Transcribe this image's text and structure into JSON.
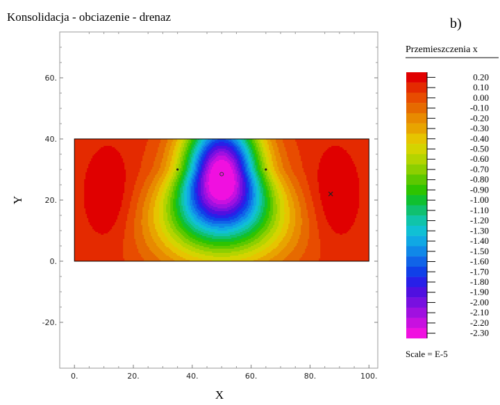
{
  "chart_data": {
    "type": "heatmap",
    "title": "Konsolidacja - obciazenie - drenaz",
    "panel_label": "b)",
    "xlabel": "X",
    "ylabel": "Y",
    "xlim": [
      -5,
      103
    ],
    "ylim": [
      -35,
      75
    ],
    "x_ticks": [
      0,
      20,
      40,
      60,
      80,
      100
    ],
    "x_tick_labels": [
      "0.",
      "20.",
      "40.",
      "60.",
      "80.",
      "100."
    ],
    "y_ticks": [
      -20,
      0,
      20,
      40,
      60
    ],
    "y_tick_labels": [
      "-20.",
      "0.",
      "20.",
      "40.",
      "60."
    ],
    "domain": {
      "x": [
        0,
        100
      ],
      "y": [
        0,
        40
      ]
    },
    "field_model": {
      "description_free": true,
      "background": 0.05,
      "features": [
        {
          "type": "trough",
          "x": 50,
          "y": 29,
          "depth": 2.3
        },
        {
          "type": "peak",
          "x": 12,
          "y": 21,
          "height": 0.18
        },
        {
          "type": "peak",
          "x": 88,
          "y": 21,
          "height": 0.18
        }
      ]
    },
    "markers": [
      {
        "x": 35,
        "y": 30,
        "symbol": "dot"
      },
      {
        "x": 65,
        "y": 30,
        "symbol": "dot"
      },
      {
        "x": 50,
        "y": 28.5,
        "symbol": "circle"
      },
      {
        "x": 87,
        "y": 22,
        "symbol": "cross"
      }
    ],
    "colorbar": {
      "title": "Przemieszczenia x",
      "scale_label": "Scale = E-5",
      "levels": [
        "0.20",
        "0.10",
        "0.00",
        "-0.10",
        "-0.20",
        "-0.30",
        "-0.40",
        "-0.50",
        "-0.60",
        "-0.70",
        "-0.80",
        "-0.90",
        "-1.00",
        "-1.10",
        "-1.20",
        "-1.30",
        "-1.40",
        "-1.50",
        "-1.60",
        "-1.70",
        "-1.80",
        "-1.90",
        "-2.00",
        "-2.10",
        "-2.20",
        "-2.30"
      ],
      "colors": [
        "#e00000",
        "#e42a00",
        "#e84c00",
        "#e66a00",
        "#e88a00",
        "#e8a400",
        "#e6c400",
        "#d4d400",
        "#b4d400",
        "#8ccf00",
        "#5cc800",
        "#2ec400",
        "#10c030",
        "#10c070",
        "#10c4aa",
        "#10c0d4",
        "#10a8e4",
        "#1088e8",
        "#1064e8",
        "#1040e8",
        "#2820e8",
        "#5010e0",
        "#7810e0",
        "#a010e0",
        "#c810e0",
        "#f010e0"
      ]
    }
  }
}
